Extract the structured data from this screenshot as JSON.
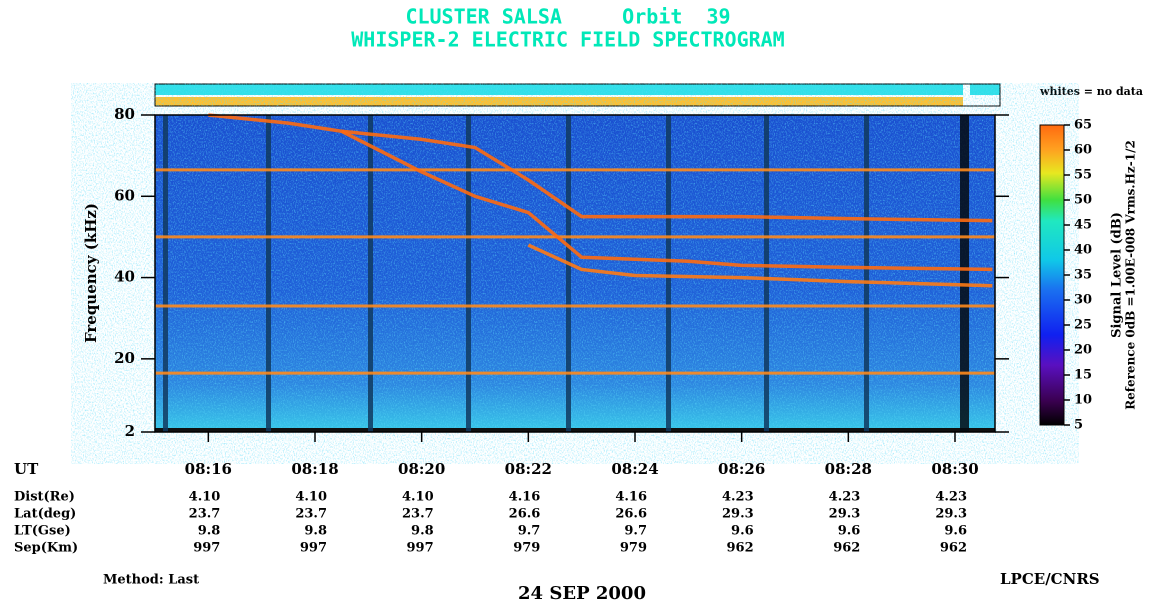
{
  "chart_data": {
    "type": "spectrogram",
    "title": "CLUSTER SALSA     Orbit  39",
    "subtitle": "WHISPER-2 ELECTRIC FIELD SPECTROGRAM",
    "note": "whites = no data",
    "y_label": "Frequency (kHz)",
    "ylim": [
      2,
      80
    ],
    "yticks": [
      2,
      20,
      40,
      60,
      80
    ],
    "xlim": [
      495.0,
      510.75
    ],
    "xticks": [
      {
        "value": 496,
        "label": "08:16"
      },
      {
        "value": 498,
        "label": "08:18"
      },
      {
        "value": 500,
        "label": "08:20"
      },
      {
        "value": 502,
        "label": "08:22"
      },
      {
        "value": 504,
        "label": "08:24"
      },
      {
        "value": 506,
        "label": "08:26"
      },
      {
        "value": 508,
        "label": "08:28"
      },
      {
        "value": 510,
        "label": "08:30"
      }
    ],
    "bands": {
      "color": "#ff8a1c",
      "values": [
        16.5,
        33,
        50,
        66.5
      ]
    },
    "traces": [
      {
        "color": "#ff6a10",
        "x": [
          496.0,
          497.5,
          498.5,
          500.0,
          501.0,
          502.0,
          503.0,
          504.0,
          505.0,
          506.0,
          508.0,
          510.7
        ],
        "y": [
          80,
          78,
          76,
          66,
          60,
          56,
          45,
          44.5,
          44,
          43,
          42.5,
          42
        ]
      },
      {
        "color": "#ff6a10",
        "x": [
          498.5,
          500.0,
          501.0,
          502.0,
          503.0,
          504.0,
          506.0,
          508.0,
          510.7
        ],
        "y": [
          76,
          74,
          72,
          64,
          55,
          55,
          55,
          54.5,
          54
        ]
      },
      {
        "color": "#ff7a14",
        "x": [
          502.0,
          503.0,
          504.0,
          506.0,
          508.0,
          510.7
        ],
        "y": [
          48,
          42,
          40.5,
          40,
          39,
          38
        ]
      }
    ],
    "colorbar": {
      "label": "Signal Level (dB)",
      "reference": "Reference 0dB =1.00E-008 Vrms.Hz-1/2",
      "lim": [
        5,
        65
      ],
      "ticks": [
        5,
        10,
        15,
        20,
        25,
        30,
        35,
        40,
        45,
        50,
        55,
        60,
        65
      ]
    },
    "ephemeris": {
      "time_label": "UT",
      "rows": [
        {
          "name": "Dist(Re)",
          "values": [
            "4.10",
            "4.10",
            "4.10",
            "4.16",
            "4.16",
            "4.23",
            "4.23",
            "4.23"
          ]
        },
        {
          "name": "Lat(deg)",
          "values": [
            "23.7",
            "23.7",
            "23.7",
            "26.6",
            "26.6",
            "29.3",
            "29.3",
            "29.3"
          ]
        },
        {
          "name": "LT(Gse)",
          "values": [
            "9.8",
            "9.8",
            "9.8",
            "9.7",
            "9.7",
            "9.6",
            "9.6",
            "9.6"
          ]
        },
        {
          "name": "Sep(Km)",
          "values": [
            "997",
            "997",
            "997",
            "979",
            "979",
            "962",
            "962",
            "962"
          ]
        }
      ]
    },
    "method": "Method: Last",
    "date": "24 SEP 2000",
    "credit": "LPCE/CNRS"
  }
}
